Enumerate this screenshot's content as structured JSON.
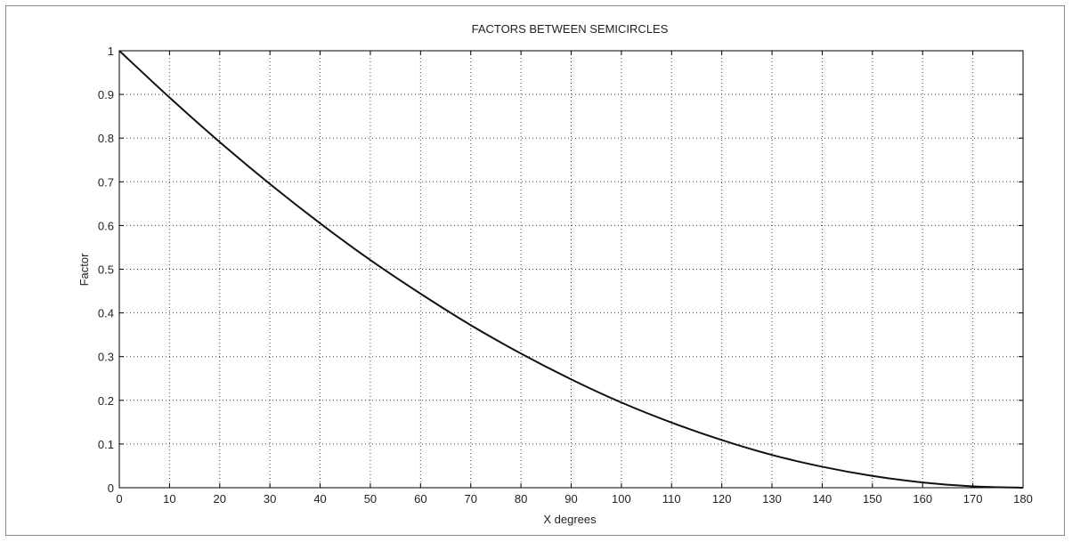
{
  "chart_data": {
    "type": "line",
    "title": "FACTORS BETWEEN SEMICIRCLES",
    "xlabel": "X degrees",
    "ylabel": "Factor",
    "xlim": [
      0,
      180
    ],
    "ylim": [
      0,
      1
    ],
    "grid": true,
    "grid_style": "dotted",
    "line_color": "#111111",
    "xticks": [
      0,
      10,
      20,
      30,
      40,
      50,
      60,
      70,
      80,
      90,
      100,
      110,
      120,
      130,
      140,
      150,
      160,
      170,
      180
    ],
    "yticks": [
      0,
      0.1,
      0.2,
      0.3,
      0.4,
      0.5,
      0.6,
      0.7,
      0.8,
      0.9,
      1
    ],
    "x": [
      0,
      10,
      20,
      30,
      40,
      50,
      60,
      70,
      80,
      90,
      100,
      110,
      120,
      130,
      140,
      150,
      160,
      170,
      180
    ],
    "y": [
      1.0,
      0.893,
      0.791,
      0.695,
      0.605,
      0.521,
      0.444,
      0.372,
      0.307,
      0.248,
      0.195,
      0.149,
      0.109,
      0.075,
      0.048,
      0.027,
      0.012,
      0.003,
      0.0
    ]
  }
}
